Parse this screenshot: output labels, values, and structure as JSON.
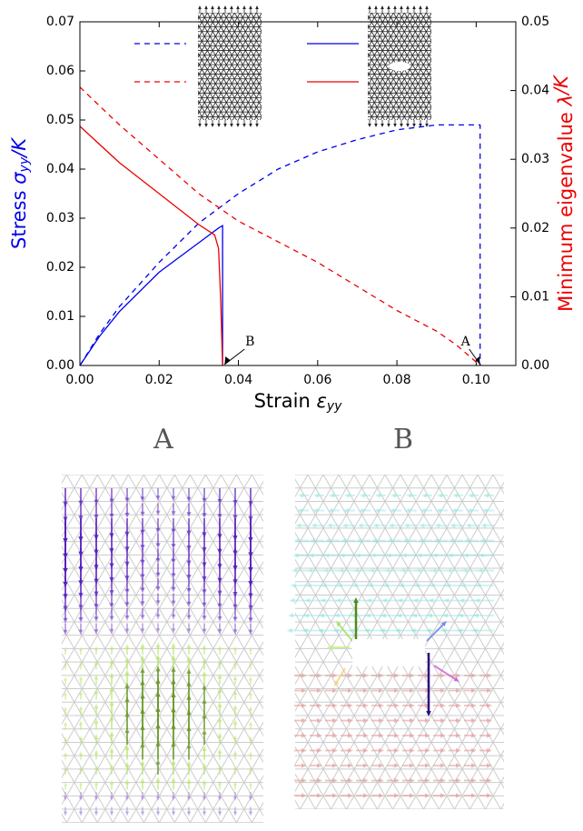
{
  "chart_data": {
    "type": "line",
    "xlabel": {
      "text": "Strain ",
      "symbol": "ε",
      "subscript": "yy"
    },
    "ylabel": {
      "text": "Stress ",
      "symbol": "σ",
      "subscript": "yy",
      "suffix": "/K",
      "color": "#0000ee"
    },
    "y2label": {
      "text": "Minimum eigenvalue ",
      "symbol": "λ",
      "suffix": "/K",
      "color": "#ee0000"
    },
    "xlim": [
      0,
      0.11
    ],
    "ylim": [
      0,
      0.07
    ],
    "y2lim": [
      0,
      0.05
    ],
    "xticks": [
      {
        "value": 0,
        "label": "0.00"
      },
      {
        "value": 0.02,
        "label": "0.02"
      },
      {
        "value": 0.04,
        "label": "0.04"
      },
      {
        "value": 0.06,
        "label": "0.06"
      },
      {
        "value": 0.08,
        "label": "0.08"
      },
      {
        "value": 0.1,
        "label": "0.10"
      }
    ],
    "yticks": [
      {
        "value": 0,
        "label": "0.00"
      },
      {
        "value": 0.01,
        "label": "0.01"
      },
      {
        "value": 0.02,
        "label": "0.02"
      },
      {
        "value": 0.03,
        "label": "0.03"
      },
      {
        "value": 0.04,
        "label": "0.04"
      },
      {
        "value": 0.05,
        "label": "0.05"
      },
      {
        "value": 0.06,
        "label": "0.06"
      },
      {
        "value": 0.07,
        "label": "0.07"
      }
    ],
    "y2ticks": [
      {
        "value": 0,
        "label": "0.00"
      },
      {
        "value": 0.01,
        "label": "0.01"
      },
      {
        "value": 0.02,
        "label": "0.02"
      },
      {
        "value": 0.03,
        "label": "0.03"
      },
      {
        "value": 0.04,
        "label": "0.04"
      },
      {
        "value": 0.05,
        "label": "0.05"
      }
    ],
    "series": [
      {
        "color": "#0000ee",
        "linestyle": "dashed",
        "axis": "y",
        "x": [
          0,
          0.005,
          0.01,
          0.02,
          0.03,
          0.04,
          0.05,
          0.06,
          0.07,
          0.08,
          0.09,
          0.1,
          0.101,
          0.101
        ],
        "values": [
          0,
          0.0065,
          0.012,
          0.021,
          0.029,
          0.035,
          0.04,
          0.0435,
          0.046,
          0.048,
          0.049,
          0.049,
          0.049,
          0
        ]
      },
      {
        "color": "#0000ee",
        "linestyle": "solid",
        "axis": "y",
        "x": [
          0,
          0.005,
          0.01,
          0.02,
          0.03,
          0.035,
          0.036,
          0.036
        ],
        "values": [
          0,
          0.006,
          0.011,
          0.019,
          0.025,
          0.028,
          0.0285,
          0
        ]
      },
      {
        "color": "#ee0000",
        "linestyle": "dashed",
        "axis": "y2",
        "x": [
          0,
          0.01,
          0.02,
          0.03,
          0.04,
          0.05,
          0.06,
          0.07,
          0.08,
          0.09,
          0.095,
          0.1,
          0.101
        ],
        "values": [
          0.0405,
          0.035,
          0.03,
          0.025,
          0.021,
          0.018,
          0.015,
          0.0115,
          0.008,
          0.005,
          0.003,
          0.0005,
          0
        ]
      },
      {
        "color": "#ee0000",
        "linestyle": "solid",
        "axis": "y2",
        "x": [
          0,
          0.01,
          0.02,
          0.03,
          0.034,
          0.035,
          0.0355,
          0.036
        ],
        "values": [
          0.0348,
          0.0295,
          0.025,
          0.0205,
          0.019,
          0.017,
          0.01,
          0
        ]
      }
    ],
    "annotations": [
      {
        "text": "A",
        "x": 0.101,
        "y": 0
      },
      {
        "text": "B",
        "x": 0.0365,
        "y": 0
      }
    ]
  },
  "panels": [
    {
      "title": "A"
    },
    {
      "title": "B"
    }
  ]
}
